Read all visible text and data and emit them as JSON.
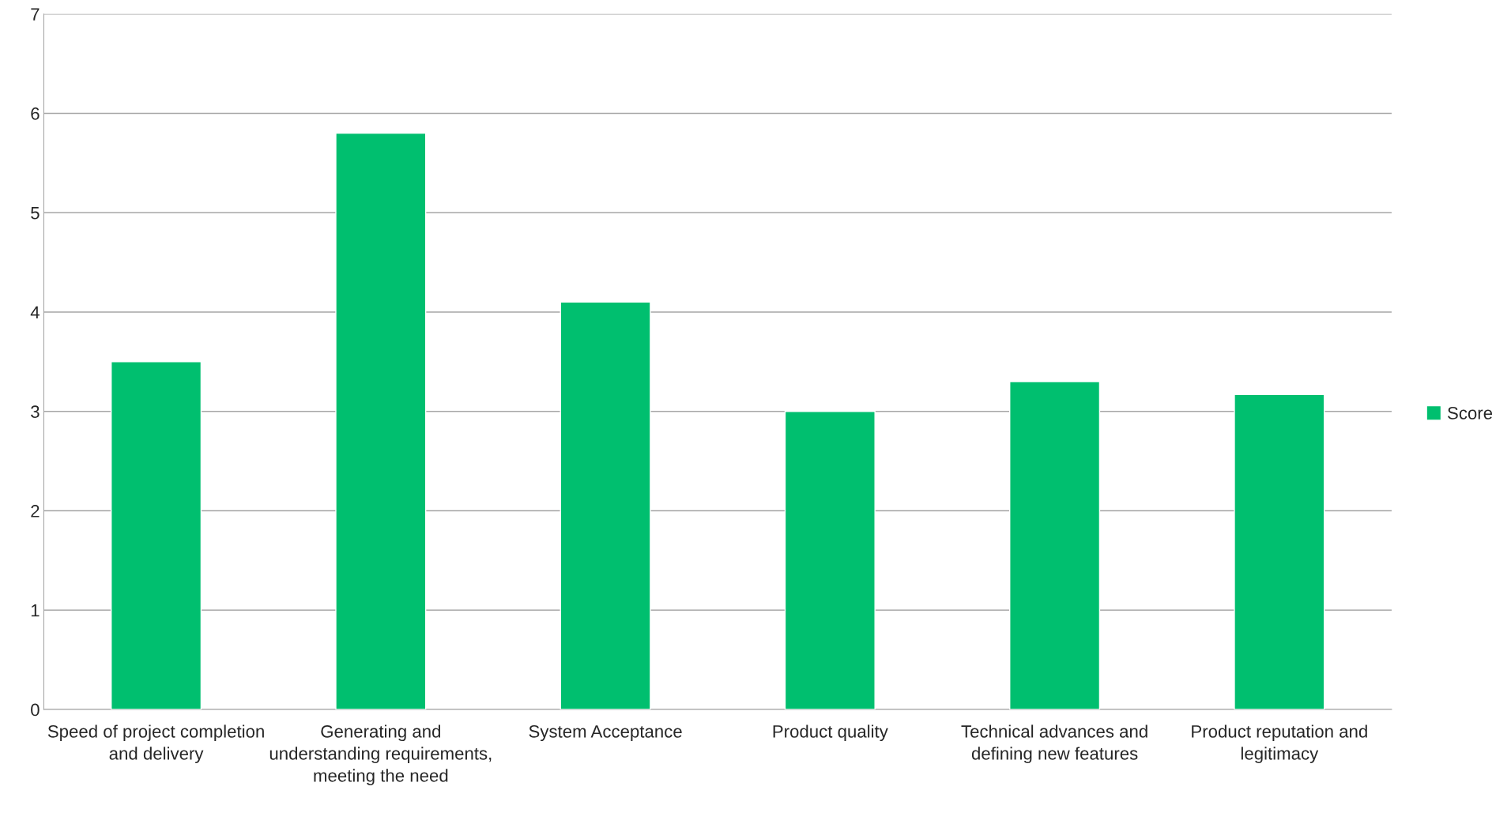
{
  "chart_data": {
    "type": "bar",
    "categories": [
      "Speed of project completion and delivery",
      "Generating and understanding requirements, meeting the need",
      "System Acceptance",
      "Product quality",
      "Technical advances and defining new features",
      "Product reputation and legitimacy"
    ],
    "series": [
      {
        "name": "Score",
        "color": "#00bf6f",
        "values": [
          3.5,
          5.8,
          4.1,
          3.0,
          3.3,
          3.17
        ]
      }
    ],
    "ylim": [
      0,
      7
    ],
    "yticks": [
      0,
      1,
      2,
      3,
      4,
      5,
      6,
      7
    ],
    "grid": "y",
    "legend": "right"
  }
}
